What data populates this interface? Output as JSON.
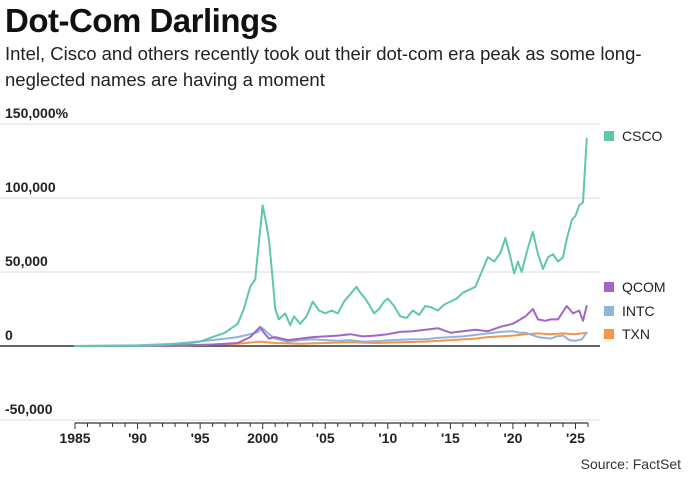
{
  "title": "Dot-Com Darlings",
  "subtitle": "Intel, Cisco and others recently took out their dot-com era peak as some long-neglected names are having a moment",
  "source": "Source: FactSet",
  "colors": {
    "CSCO": "#5fc8a5",
    "QCOM": "#a067c7",
    "INTC": "#8fb4de",
    "TXN": "#f4964a",
    "grid": "#dddddd",
    "zero": "#333333"
  },
  "chart_data": {
    "type": "line",
    "title": "Dot-Com Darlings",
    "xlabel": "",
    "ylabel": "",
    "xlim": [
      1985,
      2026
    ],
    "ylim": [
      -50000,
      150000
    ],
    "grid": true,
    "legend": "right, at series end",
    "y_ticks": [
      {
        "value": 150000,
        "label": "150,000%"
      },
      {
        "value": 100000,
        "label": "100,000"
      },
      {
        "value": 50000,
        "label": "50,000"
      },
      {
        "value": 0,
        "label": "0"
      },
      {
        "value": -50000,
        "label": "-50,000"
      }
    ],
    "x_ticks": [
      {
        "value": 1985,
        "label": "1985"
      },
      {
        "value": 1990,
        "label": "'90"
      },
      {
        "value": 1995,
        "label": "'95"
      },
      {
        "value": 2000,
        "label": "2000"
      },
      {
        "value": 2005,
        "label": "'05"
      },
      {
        "value": 2010,
        "label": "'10"
      },
      {
        "value": 2015,
        "label": "'15"
      },
      {
        "value": 2020,
        "label": "'20"
      },
      {
        "value": 2025,
        "label": "'25"
      }
    ],
    "series": [
      {
        "name": "CSCO",
        "points": [
          [
            1985,
            0
          ],
          [
            1990,
            100
          ],
          [
            1991,
            300
          ],
          [
            1992,
            700
          ],
          [
            1993,
            1500
          ],
          [
            1994,
            1700
          ],
          [
            1995,
            3000
          ],
          [
            1996,
            6000
          ],
          [
            1997,
            9000
          ],
          [
            1997.5,
            12000
          ],
          [
            1998,
            15000
          ],
          [
            1998.5,
            25000
          ],
          [
            1999,
            40000
          ],
          [
            1999.4,
            45000
          ],
          [
            1999.7,
            70000
          ],
          [
            2000,
            95000
          ],
          [
            2000.3,
            82000
          ],
          [
            2000.5,
            72000
          ],
          [
            2000.8,
            45000
          ],
          [
            2001,
            25000
          ],
          [
            2001.3,
            18000
          ],
          [
            2001.8,
            22000
          ],
          [
            2002.2,
            14000
          ],
          [
            2002.5,
            20000
          ],
          [
            2003,
            15000
          ],
          [
            2003.5,
            20000
          ],
          [
            2004,
            30000
          ],
          [
            2004.5,
            24000
          ],
          [
            2005,
            22000
          ],
          [
            2005.5,
            24000
          ],
          [
            2006,
            22000
          ],
          [
            2006.5,
            30000
          ],
          [
            2007,
            35000
          ],
          [
            2007.5,
            40000
          ],
          [
            2007.8,
            36000
          ],
          [
            2008.2,
            32000
          ],
          [
            2008.5,
            28000
          ],
          [
            2008.9,
            22000
          ],
          [
            2009.3,
            25000
          ],
          [
            2009.7,
            30000
          ],
          [
            2010,
            32000
          ],
          [
            2010.5,
            27000
          ],
          [
            2011,
            20000
          ],
          [
            2011.5,
            19000
          ],
          [
            2012,
            24000
          ],
          [
            2012.5,
            21000
          ],
          [
            2013,
            27000
          ],
          [
            2013.5,
            26000
          ],
          [
            2014,
            24000
          ],
          [
            2014.5,
            28000
          ],
          [
            2015,
            30000
          ],
          [
            2015.5,
            32000
          ],
          [
            2016,
            36000
          ],
          [
            2016.5,
            38000
          ],
          [
            2017,
            40000
          ],
          [
            2017.5,
            50000
          ],
          [
            2018,
            60000
          ],
          [
            2018.5,
            57000
          ],
          [
            2019,
            63000
          ],
          [
            2019.4,
            73000
          ],
          [
            2019.8,
            60000
          ],
          [
            2020.1,
            49000
          ],
          [
            2020.4,
            57000
          ],
          [
            2020.7,
            50000
          ],
          [
            2021,
            60000
          ],
          [
            2021.4,
            72000
          ],
          [
            2021.6,
            77000
          ],
          [
            2022,
            62000
          ],
          [
            2022.4,
            52000
          ],
          [
            2022.8,
            60000
          ],
          [
            2023.2,
            62000
          ],
          [
            2023.6,
            57000
          ],
          [
            2024,
            60000
          ],
          [
            2024.3,
            72000
          ],
          [
            2024.7,
            85000
          ],
          [
            2025,
            88000
          ],
          [
            2025.3,
            95000
          ],
          [
            2025.6,
            97000
          ],
          [
            2025.9,
            140000
          ]
        ]
      },
      {
        "name": "QCOM",
        "points": [
          [
            1985,
            0
          ],
          [
            1992,
            100
          ],
          [
            1994,
            500
          ],
          [
            1996,
            1000
          ],
          [
            1998,
            2000
          ],
          [
            1999,
            6000
          ],
          [
            1999.8,
            13000
          ],
          [
            2000.1,
            9000
          ],
          [
            2000.5,
            5000
          ],
          [
            2001,
            6000
          ],
          [
            2002,
            4000
          ],
          [
            2003,
            5000
          ],
          [
            2004,
            6000
          ],
          [
            2005,
            6500
          ],
          [
            2006,
            7000
          ],
          [
            2007,
            8000
          ],
          [
            2008,
            6500
          ],
          [
            2009,
            7000
          ],
          [
            2010,
            8000
          ],
          [
            2011,
            9500
          ],
          [
            2012,
            10000
          ],
          [
            2013,
            11000
          ],
          [
            2014,
            12000
          ],
          [
            2015,
            9000
          ],
          [
            2016,
            10000
          ],
          [
            2017,
            11000
          ],
          [
            2018,
            10000
          ],
          [
            2019,
            13000
          ],
          [
            2020,
            15000
          ],
          [
            2020.6,
            18000
          ],
          [
            2021,
            20000
          ],
          [
            2021.6,
            25000
          ],
          [
            2022,
            18000
          ],
          [
            2022.6,
            17000
          ],
          [
            2023,
            18000
          ],
          [
            2023.6,
            18000
          ],
          [
            2024.3,
            27000
          ],
          [
            2024.8,
            22000
          ],
          [
            2025.3,
            24000
          ],
          [
            2025.6,
            17000
          ],
          [
            2025.9,
            27000
          ]
        ]
      },
      {
        "name": "INTC",
        "points": [
          [
            1985,
            0
          ],
          [
            1990,
            500
          ],
          [
            1993,
            1500
          ],
          [
            1996,
            4000
          ],
          [
            1998,
            6000
          ],
          [
            1999.5,
            9000
          ],
          [
            2000,
            12000
          ],
          [
            2000.5,
            8000
          ],
          [
            2001,
            5000
          ],
          [
            2002,
            3000
          ],
          [
            2003,
            4000
          ],
          [
            2004,
            4500
          ],
          [
            2005,
            4000
          ],
          [
            2006,
            3500
          ],
          [
            2007,
            4000
          ],
          [
            2008,
            3000
          ],
          [
            2009,
            3200
          ],
          [
            2010,
            3800
          ],
          [
            2011,
            4200
          ],
          [
            2012,
            4500
          ],
          [
            2013,
            4500
          ],
          [
            2014,
            5500
          ],
          [
            2015,
            6000
          ],
          [
            2016,
            6500
          ],
          [
            2017,
            7500
          ],
          [
            2018,
            8500
          ],
          [
            2019,
            9500
          ],
          [
            2020,
            10000
          ],
          [
            2020.5,
            9000
          ],
          [
            2021,
            9000
          ],
          [
            2022,
            6000
          ],
          [
            2023,
            5000
          ],
          [
            2023.5,
            6500
          ],
          [
            2024,
            7000
          ],
          [
            2024.5,
            4000
          ],
          [
            2025,
            3500
          ],
          [
            2025.5,
            4500
          ],
          [
            2025.9,
            9000
          ]
        ]
      },
      {
        "name": "TXN",
        "points": [
          [
            1985,
            0
          ],
          [
            1990,
            200
          ],
          [
            1995,
            700
          ],
          [
            1998,
            1500
          ],
          [
            1999.8,
            3000
          ],
          [
            2000.3,
            2500
          ],
          [
            2001,
            2000
          ],
          [
            2003,
            1500
          ],
          [
            2005,
            2000
          ],
          [
            2007,
            2500
          ],
          [
            2009,
            2000
          ],
          [
            2011,
            2500
          ],
          [
            2013,
            3000
          ],
          [
            2015,
            4000
          ],
          [
            2017,
            5000
          ],
          [
            2018,
            6000
          ],
          [
            2019,
            6500
          ],
          [
            2020,
            7000
          ],
          [
            2021,
            8000
          ],
          [
            2022,
            8500
          ],
          [
            2023,
            8000
          ],
          [
            2024,
            8500
          ],
          [
            2025,
            8000
          ],
          [
            2025.9,
            9000
          ]
        ]
      }
    ]
  }
}
